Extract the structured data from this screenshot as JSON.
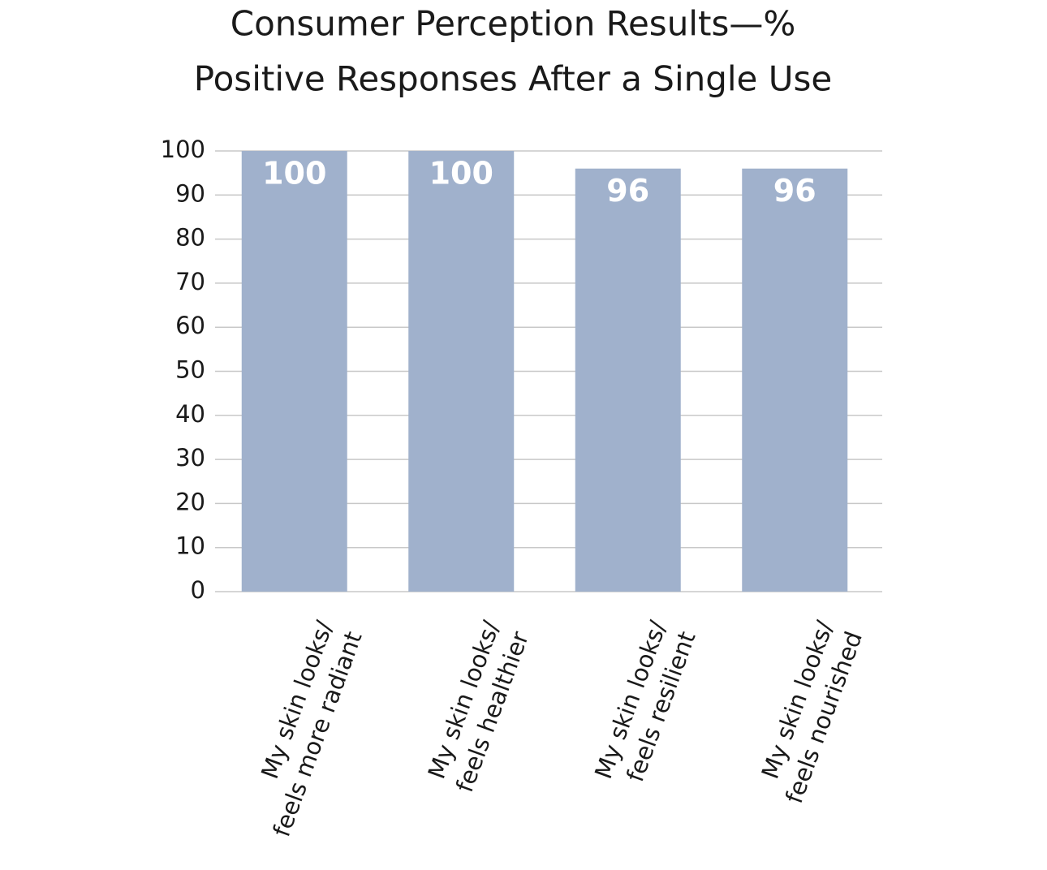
{
  "chart_data": {
    "type": "bar",
    "title": [
      "Consumer Perception Results—%",
      "Positive Responses After a Single Use"
    ],
    "categories": [
      [
        "My skin looks/",
        "feels more radiant"
      ],
      [
        "My skin looks/",
        "feels healthier"
      ],
      [
        "My skin looks/",
        "feels resilient"
      ],
      [
        "My skin looks/",
        "feels nourished"
      ]
    ],
    "values": [
      100,
      100,
      96,
      96
    ],
    "color": "#a0b1cc",
    "ylim": [
      0,
      100
    ],
    "yticks": [
      0,
      10,
      20,
      30,
      40,
      50,
      60,
      70,
      80,
      90,
      100
    ],
    "grid": true
  }
}
